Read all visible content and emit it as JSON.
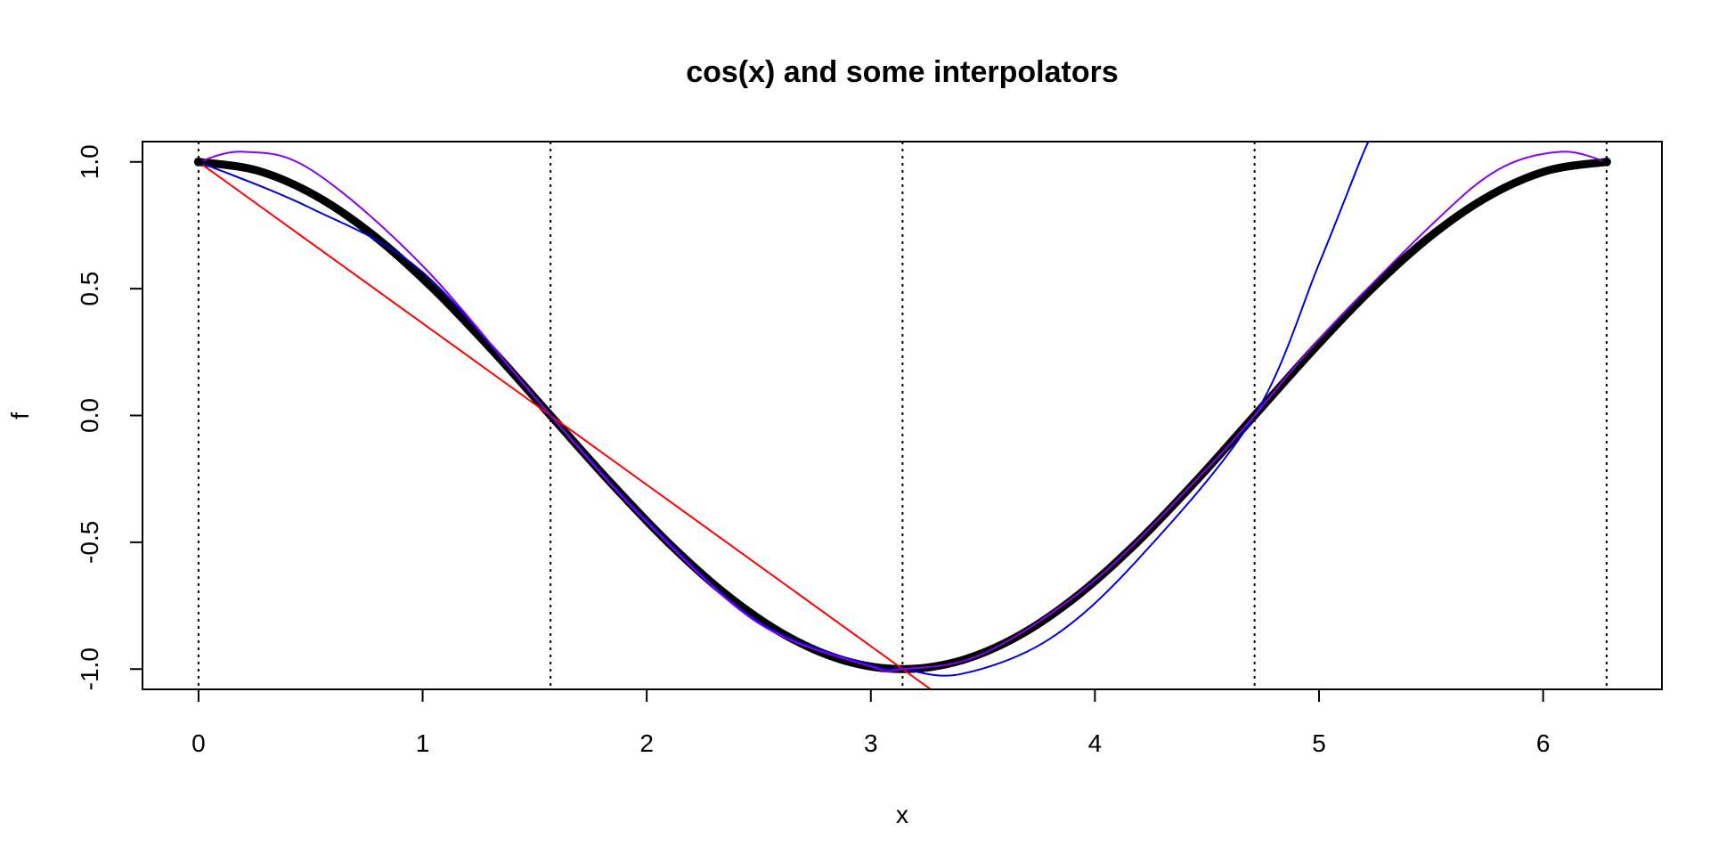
{
  "chart_data": {
    "type": "line",
    "title": "cos(x) and some interpolators",
    "xlabel": "x",
    "ylabel": "f",
    "xlim": [
      -0.25,
      6.53
    ],
    "ylim": [
      -1.08,
      1.08
    ],
    "x_ticks": [
      0,
      1,
      2,
      3,
      4,
      5,
      6
    ],
    "x_tick_labels": [
      "0",
      "1",
      "2",
      "3",
      "4",
      "5",
      "6"
    ],
    "y_ticks": [
      -1.0,
      -0.5,
      0.0,
      0.5,
      1.0
    ],
    "y_tick_labels": [
      "-1.0",
      "-0.5",
      "0.0",
      "0.5",
      "1.0"
    ],
    "grid": false,
    "vertical_reference_lines": [
      0,
      1.5708,
      3.1416,
      4.7124,
      6.2832
    ],
    "endpoints": [
      {
        "x": 0,
        "y": 1.0
      },
      {
        "x": 6.2832,
        "y": 1.0
      }
    ],
    "series": [
      {
        "color": "#000000",
        "x": [
          0,
          0.2618,
          0.5236,
          0.7854,
          1.0472,
          1.309,
          1.5708,
          1.8326,
          2.0944,
          2.3562,
          2.618,
          2.8798,
          3.1416,
          3.4034,
          3.6652,
          3.927,
          4.1888,
          4.4506,
          4.7124,
          4.9742,
          5.236,
          5.4978,
          5.7596,
          6.0214,
          6.2832
        ],
        "y": [
          1.0,
          0.9659,
          0.866,
          0.7071,
          0.5,
          0.2588,
          0.0,
          -0.2588,
          -0.5,
          -0.7071,
          -0.866,
          -0.9659,
          -1.0,
          -0.9659,
          -0.866,
          -0.7071,
          -0.5,
          -0.2588,
          0.0,
          0.2588,
          0.5,
          0.7071,
          0.866,
          0.9659,
          1.0
        ]
      },
      {
        "color": "#ff0000",
        "x": [
          0,
          1.5708,
          3.1416,
          3.25
        ],
        "y": [
          1.0,
          0.0,
          -1.0,
          -1.069
        ]
      },
      {
        "color": "#0000dd",
        "x": [
          0,
          0.5,
          1.0,
          1.5708,
          2.0,
          2.5,
          3.0,
          3.1416,
          3.4,
          3.8,
          4.2,
          4.7124,
          5.0,
          5.2,
          5.23
        ],
        "y": [
          1.0,
          0.818,
          0.565,
          0.0,
          -0.413,
          -0.814,
          -0.985,
          -1.0,
          -1.02,
          -0.88,
          -0.56,
          0.0,
          0.598,
          1.04,
          1.08
        ]
      },
      {
        "color": "#8800ee",
        "x": [
          0,
          0.2,
          0.5,
          1.0,
          1.5708,
          2.0,
          2.5,
          3.0,
          3.1416,
          3.5,
          4.0,
          4.5,
          4.7124,
          5.0,
          5.5,
          5.8,
          6.08,
          6.2832
        ],
        "y": [
          1.0,
          1.04,
          0.97,
          0.59,
          0.0,
          -0.42,
          -0.82,
          -0.99,
          -1.0,
          -0.94,
          -0.65,
          -0.21,
          0.0,
          0.3,
          0.75,
          0.97,
          1.04,
          1.0
        ]
      }
    ]
  }
}
